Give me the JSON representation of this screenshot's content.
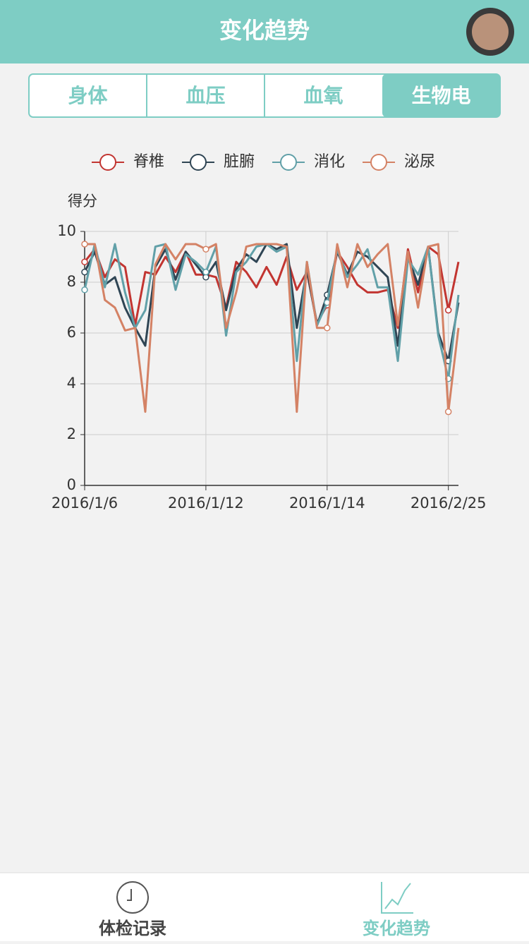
{
  "header": {
    "title": "变化趋势"
  },
  "tabs": {
    "items": [
      "身体",
      "血压",
      "血氧",
      "生物电"
    ],
    "active": 3
  },
  "chart_data": {
    "type": "line",
    "y_label": "得分",
    "categories": [
      "2016/1/6",
      null,
      null,
      null,
      null,
      null,
      null,
      null,
      null,
      null,
      null,
      null,
      "2016/1/12",
      null,
      null,
      null,
      null,
      null,
      null,
      null,
      null,
      null,
      null,
      null,
      "2016/1/14",
      null,
      null,
      null,
      null,
      null,
      null,
      null,
      null,
      null,
      null,
      null,
      "2016/2/25",
      null
    ],
    "series": [
      {
        "name": "脊椎",
        "color": "#c23531",
        "values": [
          8.8,
          9.3,
          8.2,
          8.9,
          8.6,
          6.3,
          8.4,
          8.3,
          9.0,
          8.4,
          9.2,
          8.3,
          8.3,
          8.2,
          7.0,
          8.8,
          8.4,
          7.8,
          8.6,
          7.9,
          9.0,
          7.7,
          8.4,
          6.4,
          7.1,
          9.2,
          8.6,
          7.9,
          7.6,
          7.6,
          7.7,
          6.2,
          9.3,
          7.6,
          9.4,
          9.1,
          6.9,
          8.8
        ]
      },
      {
        "name": "脏腑",
        "color": "#2f4554",
        "values": [
          8.4,
          9.2,
          7.9,
          8.2,
          7.0,
          6.2,
          5.5,
          8.6,
          9.3,
          8.1,
          9.2,
          8.7,
          8.2,
          8.8,
          6.9,
          8.5,
          9.1,
          8.8,
          9.5,
          9.3,
          9.5,
          6.2,
          8.5,
          6.3,
          7.5,
          9.2,
          8.3,
          9.2,
          9.0,
          8.6,
          8.2,
          5.5,
          9.0,
          7.9,
          9.4,
          6.0,
          4.9,
          7.2
        ]
      },
      {
        "name": "消化",
        "color": "#61a0a8",
        "values": [
          7.7,
          9.5,
          7.8,
          9.5,
          7.6,
          6.2,
          6.9,
          9.4,
          9.5,
          7.7,
          9.1,
          8.8,
          8.4,
          9.4,
          5.9,
          8.4,
          8.8,
          9.4,
          9.5,
          9.2,
          9.4,
          4.9,
          8.8,
          6.3,
          7.2,
          9.3,
          8.2,
          8.7,
          9.3,
          7.8,
          7.8,
          4.9,
          8.9,
          8.3,
          9.4,
          5.9,
          4.2,
          7.5
        ]
      },
      {
        "name": "泌尿",
        "color": "#d48265",
        "values": [
          9.5,
          9.5,
          7.3,
          7.0,
          6.1,
          6.2,
          2.9,
          8.7,
          9.5,
          8.9,
          9.5,
          9.5,
          9.3,
          9.5,
          6.2,
          7.6,
          9.4,
          9.5,
          9.5,
          9.5,
          9.4,
          2.9,
          8.8,
          6.2,
          6.2,
          9.5,
          7.8,
          9.5,
          8.6,
          9.1,
          9.5,
          6.3,
          9.2,
          7.0,
          9.4,
          9.5,
          2.9,
          6.2
        ]
      }
    ],
    "ylim": [
      0,
      10
    ],
    "yticks": [
      0,
      2,
      4,
      6,
      8,
      10
    ],
    "grid": true
  },
  "bottom_nav": {
    "items": [
      "体检记录",
      "变化趋势"
    ],
    "active": 1
  }
}
